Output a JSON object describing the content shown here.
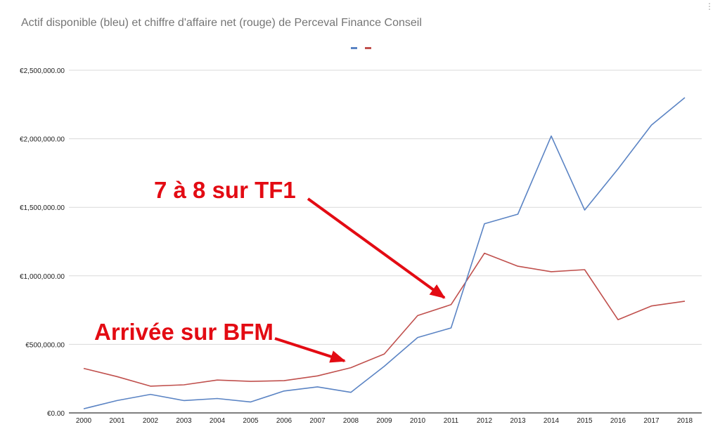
{
  "chart_data": {
    "type": "line",
    "title": "Actif disponible (bleu) et chiffre d'affaire net (rouge) de Perceval Finance Conseil",
    "categories": [
      "2000",
      "2001",
      "2002",
      "2003",
      "2004",
      "2005",
      "2006",
      "2007",
      "2008",
      "2009",
      "2010",
      "2011",
      "2012",
      "2013",
      "2014",
      "2015",
      "2016",
      "2017",
      "2018"
    ],
    "ylim": [
      0,
      2500000
    ],
    "yticks": [
      0,
      500000,
      1000000,
      1500000,
      2000000,
      2500000
    ],
    "ytick_labels": [
      "€0.00",
      "€500,000.00",
      "€1,000,000.00",
      "€1,500,000.00",
      "€2,000,000.00",
      "€2,500,000.00"
    ],
    "grid": true,
    "legend": "top",
    "series": [
      {
        "color": "#5b84c4",
        "values": [
          30000,
          90000,
          135000,
          90000,
          105000,
          80000,
          160000,
          190000,
          150000,
          340000,
          550000,
          620000,
          1380000,
          1450000,
          2020000,
          1480000,
          1780000,
          2100000,
          2300000
        ]
      },
      {
        "color": "#c0504d",
        "values": [
          325000,
          265000,
          195000,
          205000,
          240000,
          230000,
          235000,
          270000,
          330000,
          430000,
          710000,
          790000,
          1165000,
          1070000,
          1030000,
          1045000,
          680000,
          780000,
          815000
        ]
      }
    ],
    "annotations": [
      {
        "text": "7 à 8 sur TF1",
        "color": "#e30b13"
      },
      {
        "text": "Arrivée sur BFM",
        "color": "#e30b13"
      }
    ]
  },
  "ui": {
    "menu_icon": "more-vert-icon",
    "menu_glyph": "⋮",
    "grid_color": "#d9d9d9",
    "axis_color": "#333333"
  }
}
